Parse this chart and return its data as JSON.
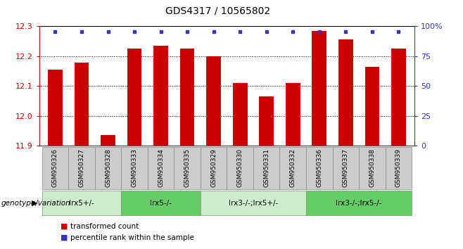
{
  "title": "GDS4317 / 10565802",
  "samples": [
    "GSM950326",
    "GSM950327",
    "GSM950328",
    "GSM950333",
    "GSM950334",
    "GSM950335",
    "GSM950329",
    "GSM950330",
    "GSM950331",
    "GSM950332",
    "GSM950336",
    "GSM950337",
    "GSM950338",
    "GSM950339"
  ],
  "transformed_counts": [
    12.155,
    12.178,
    11.935,
    12.225,
    12.235,
    12.225,
    12.2,
    12.11,
    12.065,
    12.11,
    12.285,
    12.255,
    12.165,
    12.225
  ],
  "ylim_left": [
    11.9,
    12.3
  ],
  "ylim_right": [
    0,
    100
  ],
  "bar_color": "#cc0000",
  "dot_color": "#3333bb",
  "background_color": "#ffffff",
  "axis_color_left": "#cc0000",
  "axis_color_right": "#3333bb",
  "dotted_line_vals": [
    12.0,
    12.1,
    12.2
  ],
  "groups": [
    {
      "label": "lrx5+/-",
      "start": 0,
      "end": 3,
      "color": "#cceecc"
    },
    {
      "label": "lrx5-/-",
      "start": 3,
      "end": 6,
      "color": "#66cc66"
    },
    {
      "label": "lrx3-/-;lrx5+/-",
      "start": 6,
      "end": 10,
      "color": "#cceecc"
    },
    {
      "label": "lrx3-/-;lrx5-/-",
      "start": 10,
      "end": 14,
      "color": "#66cc66"
    }
  ],
  "genotype_label": "genotype/variation",
  "legend_red_label": "transformed count",
  "legend_blue_label": "percentile rank within the sample",
  "tick_label_fontsize": 6.5,
  "title_fontsize": 10,
  "bar_width": 0.55,
  "sample_bg_color": "#cccccc",
  "sample_border_color": "#888888",
  "right_ytick_labels": [
    "0",
    "25",
    "50",
    "75",
    "100%"
  ]
}
